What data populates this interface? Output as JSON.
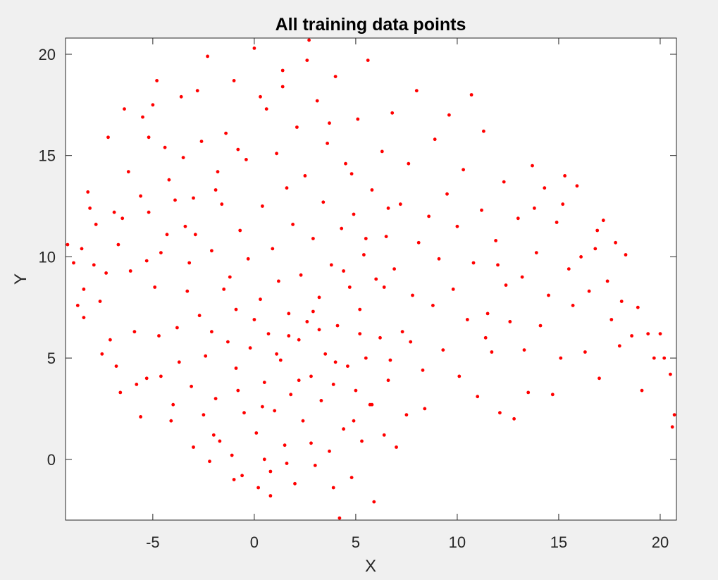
{
  "chart_data": {
    "type": "scatter",
    "title": "All training data points",
    "xlabel": "X",
    "ylabel": "Y",
    "xlim": [
      -9.3,
      20.8
    ],
    "ylim": [
      -3.0,
      20.8
    ],
    "xticks": [
      -5,
      0,
      5,
      10,
      15,
      20
    ],
    "yticks": [
      0,
      5,
      10,
      15,
      20
    ],
    "xtick_labels": [
      "-5",
      "0",
      "5",
      "10",
      "15",
      "20"
    ],
    "ytick_labels": [
      "0",
      "5",
      "10",
      "15",
      "20"
    ],
    "marker_color": "#ff0000",
    "grid": false,
    "points": [
      [
        -9.2,
        10.6
      ],
      [
        -8.9,
        9.7
      ],
      [
        -8.7,
        7.6
      ],
      [
        -8.5,
        10.4
      ],
      [
        -8.4,
        8.4
      ],
      [
        -8.2,
        13.2
      ],
      [
        -8.1,
        12.4
      ],
      [
        -7.8,
        11.6
      ],
      [
        -7.9,
        9.6
      ],
      [
        -7.6,
        7.8
      ],
      [
        -7.3,
        9.2
      ],
      [
        -7.2,
        15.9
      ],
      [
        -7.1,
        5.9
      ],
      [
        -6.9,
        12.2
      ],
      [
        -6.7,
        10.6
      ],
      [
        -6.5,
        11.9
      ],
      [
        -6.4,
        17.3
      ],
      [
        -6.2,
        14.2
      ],
      [
        -6.1,
        9.3
      ],
      [
        -5.9,
        6.3
      ],
      [
        -5.8,
        3.7
      ],
      [
        -5.6,
        13.0
      ],
      [
        -5.5,
        16.9
      ],
      [
        -5.3,
        9.8
      ],
      [
        -5.2,
        12.2
      ],
      [
        -5.2,
        15.9
      ],
      [
        -5.0,
        17.5
      ],
      [
        -4.8,
        18.7
      ],
      [
        -4.7,
        6.1
      ],
      [
        -4.6,
        4.1
      ],
      [
        -4.4,
        15.4
      ],
      [
        -4.3,
        11.1
      ],
      [
        -4.2,
        13.8
      ],
      [
        -4.0,
        2.7
      ],
      [
        -3.9,
        12.8
      ],
      [
        -3.8,
        6.5
      ],
      [
        -3.6,
        17.9
      ],
      [
        -3.5,
        14.9
      ],
      [
        -3.4,
        11.5
      ],
      [
        -3.2,
        9.7
      ],
      [
        -3.1,
        3.6
      ],
      [
        -3.0,
        12.9
      ],
      [
        -2.8,
        18.2
      ],
      [
        -2.7,
        7.1
      ],
      [
        -2.6,
        15.7
      ],
      [
        -2.4,
        5.1
      ],
      [
        -2.3,
        19.9
      ],
      [
        -2.1,
        10.3
      ],
      [
        -2.0,
        1.2
      ],
      [
        -1.9,
        3.0
      ],
      [
        -1.8,
        14.2
      ],
      [
        -1.6,
        12.6
      ],
      [
        -1.5,
        8.4
      ],
      [
        -1.4,
        16.1
      ],
      [
        -1.3,
        5.8
      ],
      [
        -1.1,
        0.2
      ],
      [
        -1.0,
        18.7
      ],
      [
        -0.9,
        7.4
      ],
      [
        -0.8,
        3.4
      ],
      [
        -0.7,
        11.3
      ],
      [
        -0.6,
        -0.8
      ],
      [
        -0.4,
        14.8
      ],
      [
        -0.3,
        9.9
      ],
      [
        -0.2,
        5.5
      ],
      [
        0.0,
        20.3
      ],
      [
        0.1,
        1.3
      ],
      [
        0.2,
        -1.4
      ],
      [
        0.3,
        7.9
      ],
      [
        0.4,
        12.5
      ],
      [
        0.5,
        3.8
      ],
      [
        0.6,
        17.3
      ],
      [
        0.7,
        6.2
      ],
      [
        0.8,
        -0.6
      ],
      [
        0.9,
        10.4
      ],
      [
        1.0,
        2.4
      ],
      [
        1.1,
        15.1
      ],
      [
        1.2,
        8.8
      ],
      [
        1.3,
        4.9
      ],
      [
        1.4,
        19.2
      ],
      [
        1.5,
        0.7
      ],
      [
        1.6,
        13.4
      ],
      [
        1.7,
        7.2
      ],
      [
        1.8,
        3.2
      ],
      [
        1.9,
        11.6
      ],
      [
        2.0,
        -1.2
      ],
      [
        2.1,
        16.4
      ],
      [
        2.2,
        5.9
      ],
      [
        2.3,
        9.1
      ],
      [
        2.4,
        1.9
      ],
      [
        2.5,
        14.0
      ],
      [
        2.6,
        6.8
      ],
      [
        2.7,
        20.7
      ],
      [
        2.8,
        4.1
      ],
      [
        2.9,
        10.9
      ],
      [
        3.0,
        -0.3
      ],
      [
        3.1,
        17.7
      ],
      [
        3.2,
        8.0
      ],
      [
        3.3,
        2.9
      ],
      [
        3.4,
        12.7
      ],
      [
        3.5,
        5.2
      ],
      [
        3.6,
        15.6
      ],
      [
        3.7,
        0.4
      ],
      [
        3.8,
        9.6
      ],
      [
        3.9,
        3.7
      ],
      [
        4.0,
        18.9
      ],
      [
        4.1,
        6.6
      ],
      [
        4.2,
        -2.9
      ],
      [
        4.3,
        11.4
      ],
      [
        4.4,
        1.5
      ],
      [
        4.5,
        14.6
      ],
      [
        4.6,
        4.6
      ],
      [
        4.7,
        8.5
      ],
      [
        4.8,
        -0.9
      ],
      [
        4.9,
        12.1
      ],
      [
        5.0,
        3.4
      ],
      [
        5.1,
        16.8
      ],
      [
        5.2,
        7.4
      ],
      [
        5.3,
        0.9
      ],
      [
        5.4,
        10.1
      ],
      [
        5.5,
        5.0
      ],
      [
        5.6,
        19.7
      ],
      [
        5.7,
        2.7
      ],
      [
        5.8,
        13.3
      ],
      [
        5.9,
        -2.1
      ],
      [
        6.0,
        8.9
      ],
      [
        6.2,
        6.0
      ],
      [
        6.3,
        15.2
      ],
      [
        6.4,
        1.2
      ],
      [
        6.5,
        11.0
      ],
      [
        6.6,
        3.9
      ],
      [
        6.8,
        17.1
      ],
      [
        6.9,
        9.4
      ],
      [
        7.0,
        0.6
      ],
      [
        7.2,
        12.6
      ],
      [
        7.3,
        6.3
      ],
      [
        7.5,
        2.2
      ],
      [
        7.6,
        14.6
      ],
      [
        7.8,
        8.1
      ],
      [
        8.0,
        18.2
      ],
      [
        8.1,
        10.7
      ],
      [
        8.3,
        4.4
      ],
      [
        8.4,
        2.5
      ],
      [
        8.6,
        12.0
      ],
      [
        8.8,
        7.6
      ],
      [
        8.9,
        15.8
      ],
      [
        9.1,
        9.9
      ],
      [
        9.3,
        5.4
      ],
      [
        9.5,
        13.1
      ],
      [
        9.6,
        17.0
      ],
      [
        9.8,
        8.4
      ],
      [
        10.0,
        11.5
      ],
      [
        10.1,
        4.1
      ],
      [
        10.3,
        14.3
      ],
      [
        10.5,
        6.9
      ],
      [
        10.7,
        18.0
      ],
      [
        10.8,
        9.7
      ],
      [
        11.0,
        3.1
      ],
      [
        11.2,
        12.3
      ],
      [
        11.3,
        16.2
      ],
      [
        11.5,
        7.2
      ],
      [
        11.7,
        5.3
      ],
      [
        11.9,
        10.8
      ],
      [
        12.1,
        2.3
      ],
      [
        12.3,
        13.7
      ],
      [
        12.4,
        8.6
      ],
      [
        12.6,
        6.8
      ],
      [
        12.8,
        2.0
      ],
      [
        13.0,
        11.9
      ],
      [
        13.2,
        9.0
      ],
      [
        13.3,
        5.4
      ],
      [
        13.5,
        3.3
      ],
      [
        13.7,
        14.5
      ],
      [
        13.9,
        10.2
      ],
      [
        14.1,
        6.6
      ],
      [
        14.3,
        13.4
      ],
      [
        14.5,
        8.1
      ],
      [
        14.7,
        3.2
      ],
      [
        14.9,
        11.7
      ],
      [
        15.1,
        5.0
      ],
      [
        15.3,
        14.0
      ],
      [
        15.5,
        9.4
      ],
      [
        15.7,
        7.6
      ],
      [
        15.9,
        13.5
      ],
      [
        16.1,
        10.0
      ],
      [
        16.3,
        5.3
      ],
      [
        16.5,
        8.3
      ],
      [
        16.8,
        10.4
      ],
      [
        17.0,
        4.0
      ],
      [
        17.2,
        11.8
      ],
      [
        17.4,
        8.8
      ],
      [
        17.6,
        6.9
      ],
      [
        17.8,
        10.7
      ],
      [
        18.0,
        5.6
      ],
      [
        18.3,
        10.1
      ],
      [
        18.6,
        6.1
      ],
      [
        18.9,
        7.5
      ],
      [
        19.1,
        3.4
      ],
      [
        19.4,
        6.2
      ],
      [
        19.7,
        5.0
      ],
      [
        20.0,
        6.2
      ],
      [
        20.2,
        5.0
      ],
      [
        20.5,
        4.2
      ],
      [
        20.7,
        2.2
      ],
      [
        20.6,
        1.6
      ],
      [
        18.1,
        7.8
      ],
      [
        16.9,
        11.3
      ],
      [
        15.2,
        12.6
      ],
      [
        13.8,
        12.4
      ],
      [
        12.0,
        9.6
      ],
      [
        11.4,
        6.0
      ],
      [
        -6.8,
        4.6
      ],
      [
        -5.6,
        2.1
      ],
      [
        -4.9,
        8.5
      ],
      [
        -3.7,
        4.8
      ],
      [
        -2.5,
        2.2
      ],
      [
        -1.7,
        0.9
      ],
      [
        -0.5,
        2.3
      ],
      [
        0.5,
        0.0
      ],
      [
        1.6,
        -0.2
      ],
      [
        2.8,
        0.8
      ],
      [
        3.9,
        -1.4
      ],
      [
        4.9,
        1.9
      ],
      [
        5.8,
        2.7
      ],
      [
        6.7,
        4.9
      ],
      [
        7.7,
        5.8
      ],
      [
        -4.6,
        10.2
      ],
      [
        -3.3,
        8.3
      ],
      [
        -2.1,
        6.3
      ],
      [
        -0.9,
        4.5
      ],
      [
        0.4,
        2.6
      ],
      [
        1.7,
        6.1
      ],
      [
        2.9,
        7.3
      ],
      [
        4.0,
        4.8
      ],
      [
        5.2,
        6.2
      ],
      [
        6.4,
        8.5
      ],
      [
        -1.2,
        9.0
      ],
      [
        0.0,
        6.9
      ],
      [
        1.1,
        5.2
      ],
      [
        2.2,
        3.9
      ],
      [
        3.2,
        6.4
      ],
      [
        4.4,
        9.3
      ],
      [
        5.5,
        10.9
      ],
      [
        6.6,
        12.4
      ],
      [
        -2.9,
        11.1
      ],
      [
        -1.9,
        13.3
      ],
      [
        -0.8,
        15.3
      ],
      [
        0.3,
        17.9
      ],
      [
        1.4,
        18.4
      ],
      [
        2.6,
        19.7
      ],
      [
        3.7,
        16.6
      ],
      [
        4.8,
        14.1
      ],
      [
        -8.4,
        7.0
      ],
      [
        -7.5,
        5.2
      ],
      [
        -6.6,
        3.3
      ],
      [
        -5.3,
        4.0
      ],
      [
        -4.1,
        1.9
      ],
      [
        -3.0,
        0.6
      ],
      [
        -2.2,
        -0.1
      ],
      [
        -1.0,
        -1.0
      ],
      [
        0.8,
        -1.8
      ]
    ]
  }
}
